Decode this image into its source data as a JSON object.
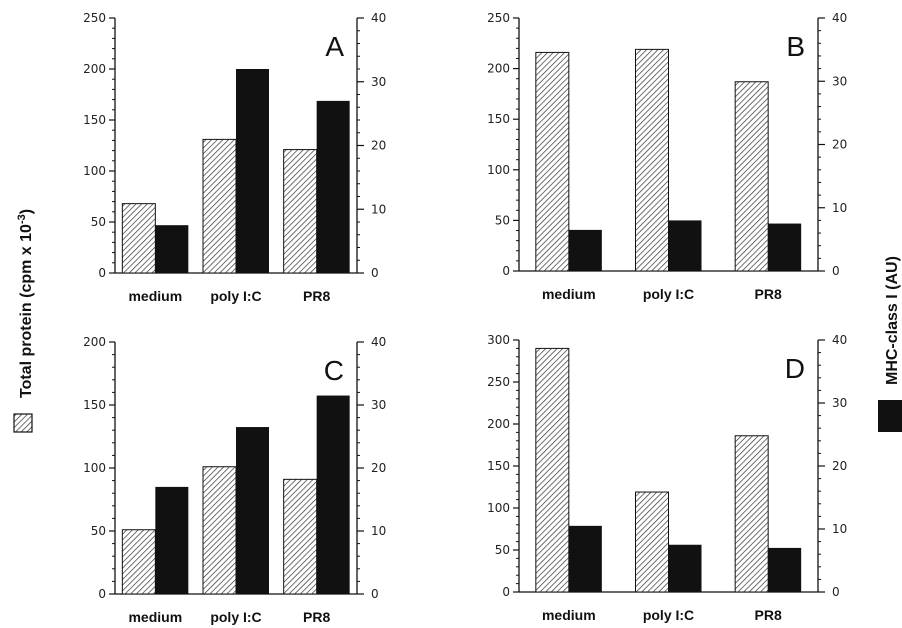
{
  "figure": {
    "left_axis_title": "Total protein (cpm x 10-3)",
    "right_axis_title": "MHC-class I (AU)",
    "colors": {
      "hatched": "#333333",
      "solid": "#111111"
    }
  },
  "chart_data": [
    {
      "type": "bar",
      "panel": "A",
      "categories": [
        "medium",
        "poly I:C",
        "PR8"
      ],
      "series": [
        {
          "name": "Total protein (cpm x 10-3)",
          "axis": "left",
          "pattern": "hatched",
          "values": [
            68,
            131,
            121
          ]
        },
        {
          "name": "MHC-class I (AU)",
          "axis": "right",
          "pattern": "solid",
          "values": [
            7.5,
            32,
            27
          ]
        }
      ],
      "ylim_left": [
        0,
        250
      ],
      "yticks_left": [
        0,
        50,
        100,
        150,
        200,
        250
      ],
      "ylim_right": [
        0,
        40
      ],
      "yticks_right": [
        0,
        10,
        20,
        30,
        40
      ],
      "grid": false
    },
    {
      "type": "bar",
      "panel": "B",
      "categories": [
        "medium",
        "poly I:C",
        "PR8"
      ],
      "series": [
        {
          "name": "Total protein (cpm x 10-3)",
          "axis": "left",
          "pattern": "hatched",
          "values": [
            216,
            219,
            187
          ]
        },
        {
          "name": "MHC-class I (AU)",
          "axis": "right",
          "pattern": "solid",
          "values": [
            6.5,
            8,
            7.5
          ]
        }
      ],
      "ylim_left": [
        0,
        250
      ],
      "yticks_left": [
        0,
        50,
        100,
        150,
        200,
        250
      ],
      "ylim_right": [
        0,
        40
      ],
      "yticks_right": [
        0,
        10,
        20,
        30,
        40
      ],
      "grid": false
    },
    {
      "type": "bar",
      "panel": "C",
      "categories": [
        "medium",
        "poly I:C",
        "PR8"
      ],
      "series": [
        {
          "name": "Total protein (cpm x 10-3)",
          "axis": "left",
          "pattern": "hatched",
          "values": [
            51,
            101,
            91
          ]
        },
        {
          "name": "MHC-class I (AU)",
          "axis": "right",
          "pattern": "solid",
          "values": [
            17,
            26.5,
            31.5
          ]
        }
      ],
      "ylim_left": [
        0,
        200
      ],
      "yticks_left": [
        0,
        50,
        100,
        150,
        200
      ],
      "ylim_right": [
        0,
        40
      ],
      "yticks_right": [
        0,
        10,
        20,
        30,
        40
      ],
      "grid": false
    },
    {
      "type": "bar",
      "panel": "D",
      "categories": [
        "medium",
        "poly I:C",
        "PR8"
      ],
      "series": [
        {
          "name": "Total protein (cpm x 10-3)",
          "axis": "left",
          "pattern": "hatched",
          "values": [
            290,
            119,
            186
          ]
        },
        {
          "name": "MHC-class I (AU)",
          "axis": "right",
          "pattern": "solid",
          "values": [
            10.5,
            7.5,
            7
          ]
        }
      ],
      "ylim_left": [
        0,
        300
      ],
      "yticks_left": [
        0,
        50,
        100,
        150,
        200,
        250,
        300
      ],
      "ylim_right": [
        0,
        40
      ],
      "yticks_right": [
        0,
        10,
        20,
        30,
        40
      ],
      "grid": false
    }
  ]
}
